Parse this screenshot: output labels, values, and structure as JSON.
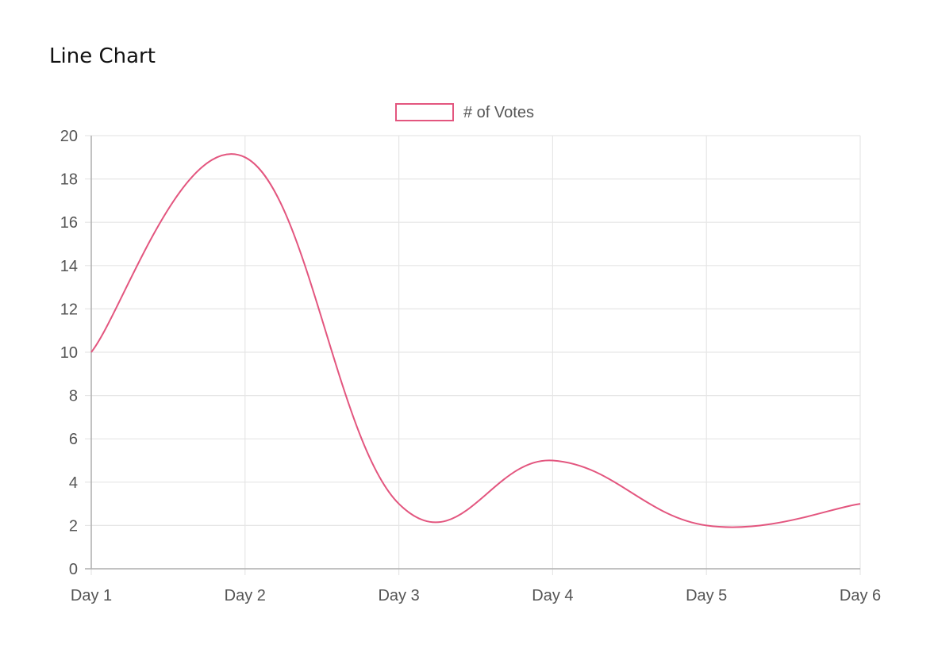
{
  "page": {
    "title": "Line Chart"
  },
  "chart_data": {
    "type": "line",
    "categories": [
      "Day 1",
      "Day 2",
      "Day 3",
      "Day 4",
      "Day 5",
      "Day 6"
    ],
    "series": [
      {
        "name": "# of Votes",
        "values": [
          10,
          19,
          3,
          5,
          2,
          3
        ],
        "color": "#e3567f"
      }
    ],
    "ylim": [
      0,
      20
    ],
    "yticks": [
      0,
      2,
      4,
      6,
      8,
      10,
      12,
      14,
      16,
      18,
      20
    ],
    "grid": true,
    "legend_position": "top-center",
    "colors": {
      "grid": "#e6e6e6",
      "axis": "#b0b0b0",
      "text": "#555555"
    }
  }
}
